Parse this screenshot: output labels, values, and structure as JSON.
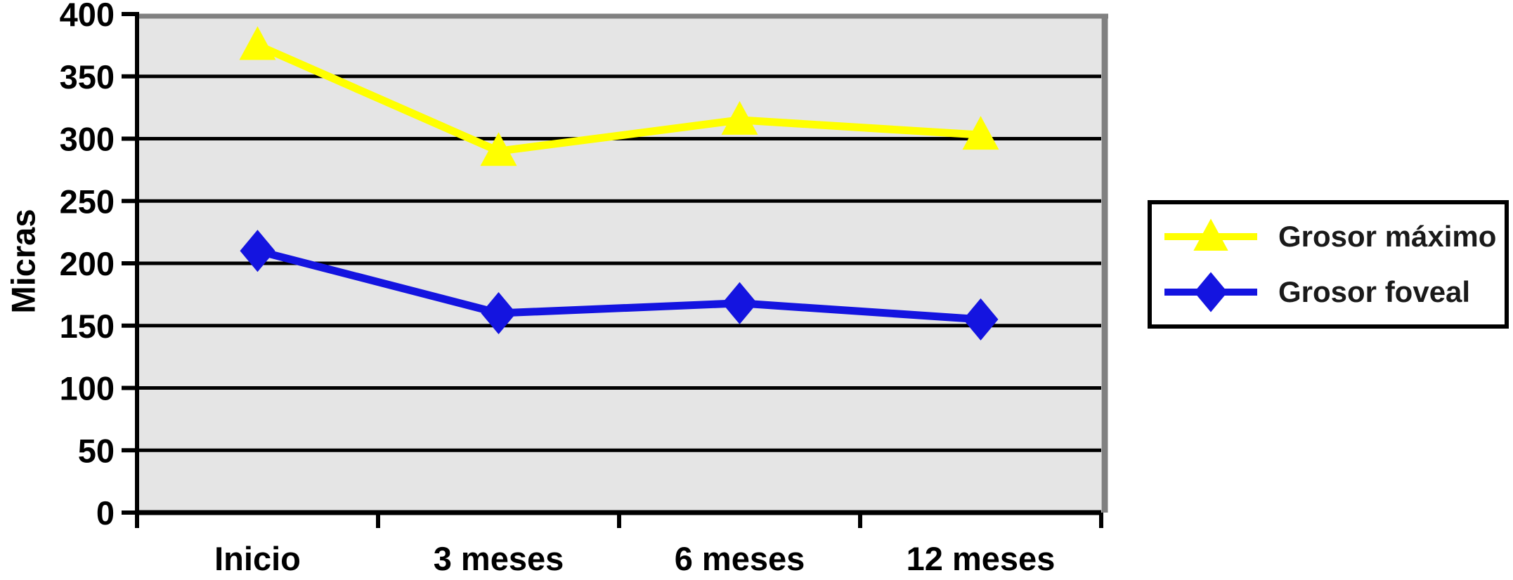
{
  "chart_data": {
    "type": "line",
    "title": "",
    "xlabel": "",
    "ylabel": "Micras",
    "categories": [
      "Inicio",
      "3 meses",
      "6 meses",
      "12 meses"
    ],
    "series": [
      {
        "name": "Grosor máximo",
        "color": "#FFFF00",
        "marker": "triangle",
        "values": [
          375,
          290,
          315,
          303
        ]
      },
      {
        "name": "Grosor foveal",
        "color": "#1414E0",
        "marker": "diamond",
        "values": [
          210,
          160,
          168,
          155
        ]
      }
    ],
    "ylim": [
      0,
      400
    ],
    "yticks": [
      0,
      50,
      100,
      150,
      200,
      250,
      300,
      350,
      400
    ],
    "grid": "horizontal",
    "gridline_color": "#000000",
    "axis_color": "#000000",
    "plot_background": "#E5E5E5",
    "plot_shadow_color": "#808080",
    "legend_position": "right",
    "legend_border_color": "#000000"
  }
}
